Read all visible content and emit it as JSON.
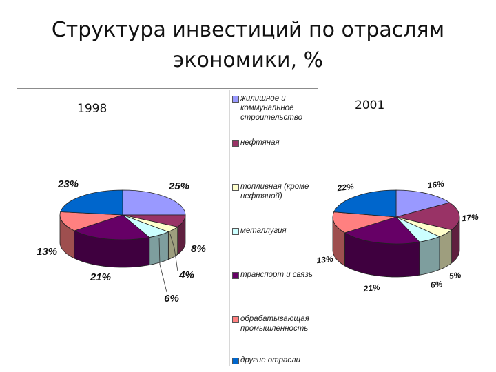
{
  "title_line1": "Структура инвестиций по отраслям",
  "title_line2": "экономики, %",
  "legend_colors": {
    "housing": "#9999ff",
    "oil": "#993366",
    "fuel": "#ffffcc",
    "metallurgy": "#ccffff",
    "transport": "#660066",
    "manufacturing": "#ff8080",
    "other": "#0066cc"
  },
  "chart_data": [
    {
      "type": "pie",
      "title": "1998",
      "legend_position": "right",
      "labels": [
        "жилищное и коммунальное строительство",
        "нефтяная",
        "топливная (кроме нефтяной)",
        "металлугия",
        "транспорт и связь",
        "обрабатывающая промышленность",
        "другие отрасли"
      ],
      "values": [
        25,
        8,
        4,
        6,
        21,
        13,
        23
      ],
      "data_labels": [
        "25%",
        "8%",
        "4%",
        "6%",
        "21%",
        "13%",
        "23%"
      ]
    },
    {
      "type": "pie",
      "title": "2001",
      "legend_position": "right",
      "labels": [
        "жилищное и коммунальное строительство",
        "нефтяная",
        "топливная (кроме нефтяной)",
        "металлугия",
        "транспорт и связь",
        "обрабатывающая промышленность",
        "другие отрасли"
      ],
      "values": [
        16,
        17,
        5,
        6,
        21,
        13,
        22
      ],
      "data_labels": [
        "16%",
        "17%",
        "5%",
        "6%",
        "21%",
        "13%",
        "22%"
      ]
    }
  ]
}
